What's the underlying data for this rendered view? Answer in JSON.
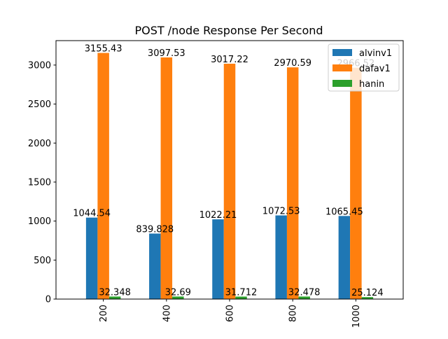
{
  "chart_data": {
    "type": "bar",
    "title": "POST /node Response Per Second",
    "xlabel": "",
    "ylabel": "",
    "categories": [
      "200",
      "400",
      "600",
      "800",
      "1000"
    ],
    "series": [
      {
        "name": "alvinv1",
        "values": [
          1044.54,
          839.828,
          1022.21,
          1072.53,
          1065.45
        ],
        "labels": [
          "1044.54",
          "839.828",
          "1022.21",
          "1072.53",
          "1065.45"
        ],
        "color": "#1f77b4"
      },
      {
        "name": "dafav1",
        "values": [
          3155.43,
          3097.53,
          3017.22,
          2970.59,
          2966.52
        ],
        "labels": [
          "3155.43",
          "3097.53",
          "3017.22",
          "2970.59",
          "2966.52"
        ],
        "color": "#ff7f0e"
      },
      {
        "name": "hanin",
        "values": [
          32.348,
          32.69,
          31.712,
          32.478,
          25.124
        ],
        "labels": [
          "32.348",
          "32.69",
          "31.712",
          "32.478",
          "25.124"
        ],
        "color": "#2ca02c"
      }
    ],
    "yticks": [
      0,
      500,
      1000,
      1500,
      2000,
      2500,
      3000
    ],
    "ylim": [
      0,
      3313.2
    ],
    "grid": false,
    "legend_position": "top-right"
  }
}
